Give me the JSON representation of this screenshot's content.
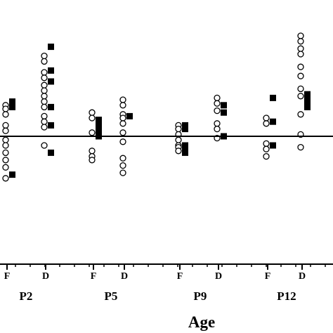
{
  "chart_data": {
    "type": "scatter",
    "title": "",
    "xlabel": "Age",
    "ylabel": "",
    "ylim": [
      -10,
      10
    ],
    "baseline": 0,
    "groups": [
      "P2",
      "P5",
      "P9",
      "P12"
    ],
    "conditions": [
      "F",
      "D"
    ],
    "legend": "none",
    "grid": false,
    "series": [
      {
        "marker": "open-circle",
        "points": [
          {
            "x": "P2-F",
            "y": [
              1.7,
              1.5,
              1.2,
              0.6,
              0.3,
              -0.2,
              -0.5,
              -0.9,
              -1.3,
              -1.7,
              -2.3
            ]
          },
          {
            "x": "P2-D",
            "y": [
              4.4,
              4.1,
              3.5,
              3.2,
              2.8,
              2.5,
              2.2,
              1.9,
              1.6,
              1.1,
              0.8,
              0.5,
              -0.5
            ]
          },
          {
            "x": "P5-F",
            "y": [
              1.3,
              1.0,
              0.2,
              -0.8,
              -1.1,
              -1.3
            ]
          },
          {
            "x": "P5-D",
            "y": [
              2.0,
              1.7,
              1.2,
              1.0,
              0.7,
              0.2,
              -0.3,
              -1.2,
              -1.6,
              -2.0
            ]
          },
          {
            "x": "P9-F",
            "y": [
              0.6,
              0.4,
              0.1,
              -0.2,
              -0.5,
              -0.6,
              -0.8
            ]
          },
          {
            "x": "P9-D",
            "y": [
              2.1,
              1.8,
              1.4,
              0.7,
              0.4,
              -0.1
            ]
          },
          {
            "x": "P12-F",
            "y": [
              1.0,
              0.7,
              -0.4,
              -0.7,
              -1.1
            ]
          },
          {
            "x": "P12-D",
            "y": [
              5.5,
              5.2,
              4.8,
              4.5,
              3.8,
              3.3,
              2.6,
              2.2,
              1.2,
              0.1,
              -0.6
            ]
          }
        ]
      },
      {
        "marker": "filled-square",
        "points": [
          {
            "x": "P2-F",
            "y": [
              1.9,
              1.6,
              -2.1
            ]
          },
          {
            "x": "P2-D",
            "y": [
              4.9,
              3.6,
              3.0,
              1.6,
              0.6,
              -0.9
            ]
          },
          {
            "x": "P5-F",
            "y": [
              0.9,
              0.6,
              0.4,
              0.2,
              0.0
            ]
          },
          {
            "x": "P5-D",
            "y": [
              1.1
            ]
          },
          {
            "x": "P9-F",
            "y": [
              0.6,
              0.4,
              -0.5,
              -0.7,
              -0.9
            ]
          },
          {
            "x": "P9-D",
            "y": [
              1.7,
              1.3,
              0.0
            ]
          },
          {
            "x": "P12-F",
            "y": [
              2.1,
              0.8,
              -0.5
            ]
          },
          {
            "x": "P12-D",
            "y": [
              2.3,
              2.1,
              1.8,
              1.6
            ]
          }
        ]
      }
    ]
  }
}
